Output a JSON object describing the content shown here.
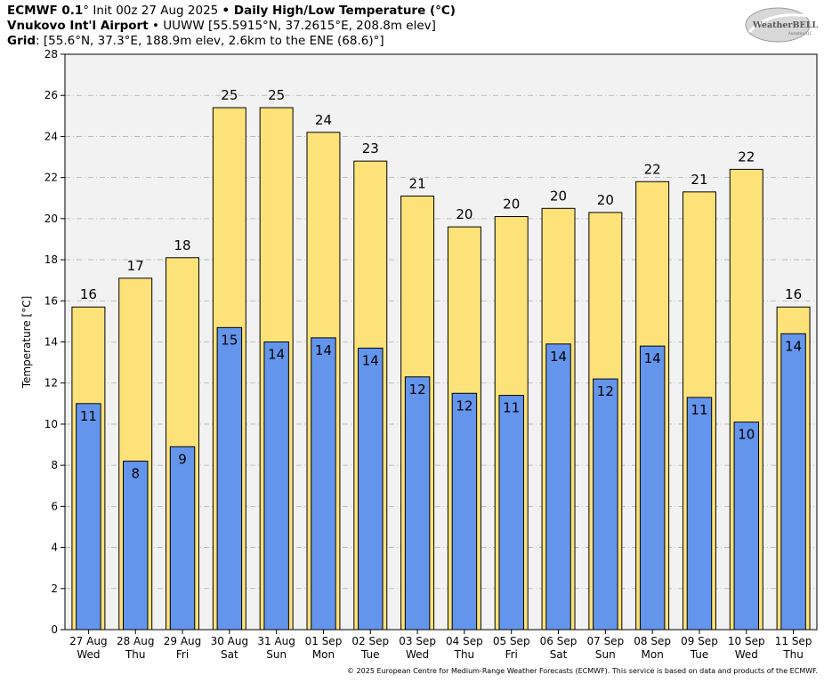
{
  "header": {
    "line1": {
      "model": "ECMWF 0.1",
      "deg": "°",
      "init": " Init 00z 27 Aug 2025 ",
      "bullet": "•",
      "product": " Daily High/Low Temperature (°C)"
    },
    "line2": {
      "station": "Vnukovo Int'l Airport",
      "bullet": " • ",
      "info": "UUWW [55.5915°N, 37.2615°E, 208.8m elev]"
    },
    "line3": {
      "label": "Grid",
      "info": ": [55.6°N, 37.3°E, 188.9m elev, 2.6km to the ENE (68.6)°]"
    }
  },
  "logo": {
    "text": "WeatherBELL",
    "sub": "Analytics LLC"
  },
  "copyright": "© 2025 European Centre for Medium-Range Weather Forecasts (ECMWF). This service is based on data and products of the ECMWF.",
  "colors": {
    "high": "#fde27a",
    "low": "#6495ed",
    "plot_bg": "#f2f2f2",
    "grid": "#b0b0b0"
  },
  "chart_data": {
    "type": "bar",
    "title": "Daily High/Low Temperature (°C)",
    "ylabel": "Temperature [°C]",
    "xlabel": "",
    "ylim": [
      0,
      28
    ],
    "yticks": [
      0,
      2,
      4,
      6,
      8,
      10,
      12,
      14,
      16,
      18,
      20,
      22,
      24,
      26,
      28
    ],
    "grid": true,
    "categories": [
      [
        "27 Aug",
        "Wed"
      ],
      [
        "28 Aug",
        "Thu"
      ],
      [
        "29 Aug",
        "Fri"
      ],
      [
        "30 Aug",
        "Sat"
      ],
      [
        "31 Aug",
        "Sun"
      ],
      [
        "01 Sep",
        "Mon"
      ],
      [
        "02 Sep",
        "Tue"
      ],
      [
        "03 Sep",
        "Wed"
      ],
      [
        "04 Sep",
        "Thu"
      ],
      [
        "05 Sep",
        "Fri"
      ],
      [
        "06 Sep",
        "Sat"
      ],
      [
        "07 Sep",
        "Sun"
      ],
      [
        "08 Sep",
        "Mon"
      ],
      [
        "09 Sep",
        "Tue"
      ],
      [
        "10 Sep",
        "Wed"
      ],
      [
        "11 Sep",
        "Thu"
      ]
    ],
    "series": [
      {
        "values": [
          15.7,
          17.1,
          18.1,
          25.4,
          25.4,
          24.2,
          22.8,
          21.1,
          19.6,
          20.1,
          20.5,
          20.3,
          21.8,
          21.3,
          22.4,
          15.7
        ],
        "labels": [
          "16",
          "17",
          "18",
          "25",
          "25",
          "24",
          "23",
          "21",
          "20",
          "20",
          "20",
          "20",
          "22",
          "21",
          "22",
          "16"
        ]
      },
      {
        "values": [
          11.0,
          8.2,
          8.9,
          14.7,
          14.0,
          14.2,
          13.7,
          12.3,
          11.5,
          11.4,
          13.9,
          12.2,
          13.8,
          11.3,
          10.1,
          14.4
        ],
        "labels": [
          "11",
          "8",
          "9",
          "15",
          "14",
          "14",
          "14",
          "12",
          "12",
          "11",
          "14",
          "12",
          "14",
          "11",
          "10",
          "14"
        ]
      }
    ]
  }
}
